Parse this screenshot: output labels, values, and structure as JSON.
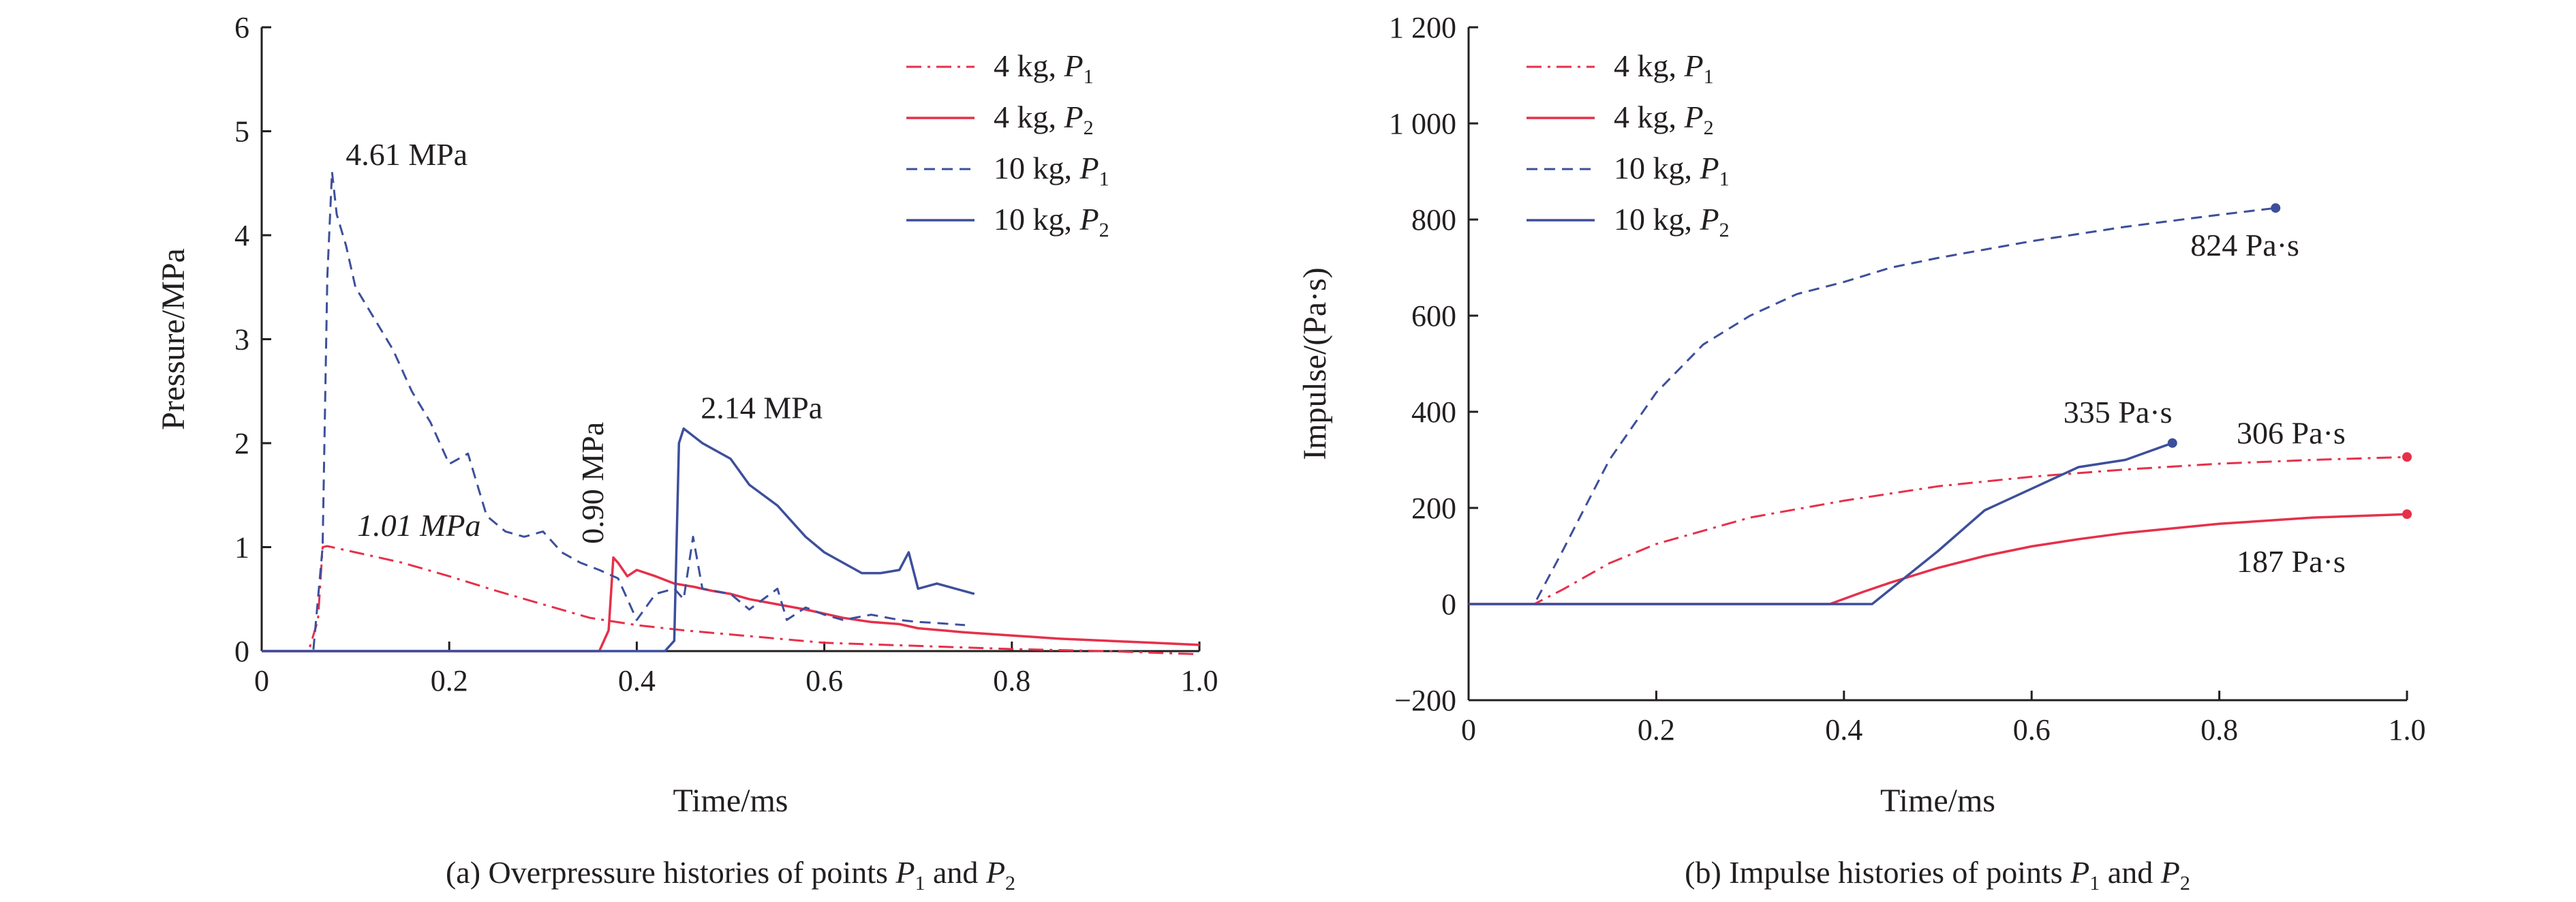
{
  "chart_data": [
    {
      "type": "line",
      "panel": "a",
      "caption": {
        "prefix": "(a) Overpressure histories of points ",
        "p1": "P",
        "p1_sub": "1",
        "mid": " and ",
        "p2": "P",
        "p2_sub": "2"
      },
      "xlabel": "Time/ms",
      "ylabel": "Pressure/MPa",
      "xlim": [
        0,
        1.0
      ],
      "ylim": [
        0,
        6
      ],
      "xticks": [
        0,
        0.2,
        0.4,
        0.6,
        0.8,
        1.0
      ],
      "xtick_labels": [
        "0",
        "0.2",
        "0.4",
        "0.6",
        "0.8",
        "1.0"
      ],
      "yticks": [
        0,
        1,
        2,
        3,
        4,
        5,
        6
      ],
      "ytick_labels": [
        "0",
        "1",
        "2",
        "3",
        "4",
        "5",
        "6"
      ],
      "legend_position": "top-right",
      "series": [
        {
          "key": "a1",
          "mass": "4 kg, ",
          "point": "P",
          "sub": "1",
          "color": "#e6304a",
          "dash": "dashdot",
          "width": 3,
          "points": [
            [
              0,
              0
            ],
            [
              0.05,
              0
            ],
            [
              0.06,
              0.3
            ],
            [
              0.065,
              1.0
            ],
            [
              0.07,
              1.01
            ],
            [
              0.1,
              0.95
            ],
            [
              0.15,
              0.85
            ],
            [
              0.2,
              0.72
            ],
            [
              0.25,
              0.58
            ],
            [
              0.3,
              0.45
            ],
            [
              0.35,
              0.32
            ],
            [
              0.4,
              0.25
            ],
            [
              0.45,
              0.2
            ],
            [
              0.5,
              0.16
            ],
            [
              0.55,
              0.12
            ],
            [
              0.6,
              0.08
            ],
            [
              0.7,
              0.05
            ],
            [
              0.8,
              0.02
            ],
            [
              0.9,
              0.0
            ],
            [
              1.0,
              -0.03
            ]
          ]
        },
        {
          "key": "a2",
          "mass": "4 kg, ",
          "point": "P",
          "sub": "2",
          "color": "#e6304a",
          "dash": "solid",
          "width": 3.5,
          "points": [
            [
              0,
              0
            ],
            [
              0.36,
              0
            ],
            [
              0.37,
              0.2
            ],
            [
              0.375,
              0.9
            ],
            [
              0.38,
              0.85
            ],
            [
              0.39,
              0.72
            ],
            [
              0.4,
              0.78
            ],
            [
              0.42,
              0.72
            ],
            [
              0.44,
              0.65
            ],
            [
              0.46,
              0.62
            ],
            [
              0.48,
              0.58
            ],
            [
              0.5,
              0.55
            ],
            [
              0.52,
              0.5
            ],
            [
              0.55,
              0.45
            ],
            [
              0.58,
              0.4
            ],
            [
              0.6,
              0.36
            ],
            [
              0.62,
              0.32
            ],
            [
              0.65,
              0.28
            ],
            [
              0.68,
              0.26
            ],
            [
              0.7,
              0.22
            ],
            [
              0.75,
              0.18
            ],
            [
              0.8,
              0.15
            ],
            [
              0.85,
              0.12
            ],
            [
              0.9,
              0.1
            ],
            [
              0.95,
              0.08
            ],
            [
              1.0,
              0.06
            ]
          ]
        },
        {
          "key": "a3",
          "mass": "10 kg, ",
          "point": "P",
          "sub": "1",
          "color": "#3d4f9b",
          "dash": "dashed",
          "width": 3,
          "points": [
            [
              0,
              0
            ],
            [
              0.055,
              0
            ],
            [
              0.065,
              1.0
            ],
            [
              0.07,
              3.6
            ],
            [
              0.075,
              4.61
            ],
            [
              0.08,
              4.2
            ],
            [
              0.09,
              3.9
            ],
            [
              0.1,
              3.5
            ],
            [
              0.12,
              3.2
            ],
            [
              0.14,
              2.9
            ],
            [
              0.16,
              2.5
            ],
            [
              0.18,
              2.2
            ],
            [
              0.2,
              1.8
            ],
            [
              0.22,
              1.9
            ],
            [
              0.24,
              1.3
            ],
            [
              0.26,
              1.15
            ],
            [
              0.28,
              1.1
            ],
            [
              0.3,
              1.15
            ],
            [
              0.32,
              0.95
            ],
            [
              0.34,
              0.85
            ],
            [
              0.36,
              0.78
            ],
            [
              0.38,
              0.7
            ],
            [
              0.4,
              0.3
            ],
            [
              0.42,
              0.55
            ],
            [
              0.44,
              0.6
            ],
            [
              0.45,
              0.5
            ],
            [
              0.46,
              1.1
            ],
            [
              0.47,
              0.6
            ],
            [
              0.5,
              0.55
            ],
            [
              0.52,
              0.4
            ],
            [
              0.55,
              0.6
            ],
            [
              0.56,
              0.3
            ],
            [
              0.58,
              0.42
            ],
            [
              0.6,
              0.35
            ],
            [
              0.62,
              0.3
            ],
            [
              0.65,
              0.35
            ],
            [
              0.68,
              0.3
            ],
            [
              0.7,
              0.28
            ],
            [
              0.72,
              0.27
            ],
            [
              0.75,
              0.25
            ]
          ]
        },
        {
          "key": "a4",
          "mass": "10 kg, ",
          "point": "P",
          "sub": "2",
          "color": "#3d4f9b",
          "dash": "solid",
          "width": 3.5,
          "points": [
            [
              0,
              0
            ],
            [
              0.43,
              0
            ],
            [
              0.44,
              0.1
            ],
            [
              0.445,
              2.0
            ],
            [
              0.45,
              2.14
            ],
            [
              0.47,
              2.0
            ],
            [
              0.5,
              1.85
            ],
            [
              0.52,
              1.6
            ],
            [
              0.55,
              1.4
            ],
            [
              0.57,
              1.2
            ],
            [
              0.58,
              1.1
            ],
            [
              0.6,
              0.95
            ],
            [
              0.62,
              0.85
            ],
            [
              0.64,
              0.75
            ],
            [
              0.66,
              0.75
            ],
            [
              0.68,
              0.78
            ],
            [
              0.69,
              0.95
            ],
            [
              0.7,
              0.6
            ],
            [
              0.72,
              0.65
            ],
            [
              0.74,
              0.6
            ],
            [
              0.76,
              0.55
            ]
          ]
        }
      ],
      "annotations": [
        {
          "text": "4.61 MPa",
          "x": 0.075,
          "y": 4.61,
          "color": "#231f20"
        },
        {
          "text": "1.01 MPa",
          "x": 0.08,
          "y": 1.01,
          "color": "#231f20",
          "italic": true
        },
        {
          "text": "0.90 MPa",
          "x": 0.375,
          "y": 0.9,
          "color": "#231f20",
          "rotate": true
        },
        {
          "text": "2.14 MPa",
          "x": 0.45,
          "y": 2.14,
          "color": "#231f20"
        }
      ]
    },
    {
      "type": "line",
      "panel": "b",
      "caption": {
        "prefix": "(b) Impulse histories of points ",
        "p1": "P",
        "p1_sub": "1",
        "mid": " and ",
        "p2": "P",
        "p2_sub": "2"
      },
      "xlabel": "Time/ms",
      "ylabel": "Impulse/(Pa·s)",
      "xlim": [
        0,
        1.0
      ],
      "ylim": [
        -200,
        1200
      ],
      "xticks": [
        0,
        0.2,
        0.4,
        0.6,
        0.8,
        1.0
      ],
      "xtick_labels": [
        "0",
        "0.2",
        "0.4",
        "0.6",
        "0.8",
        "1.0"
      ],
      "yticks": [
        -200,
        0,
        200,
        400,
        600,
        800,
        1000,
        1200
      ],
      "ytick_labels": [
        "−200",
        "0",
        "200",
        "400",
        "600",
        "800",
        "1 000",
        "1 200"
      ],
      "legend_position": "top-left",
      "series": [
        {
          "key": "b1",
          "mass": "4 kg, ",
          "point": "P",
          "sub": "1",
          "color": "#e6304a",
          "dash": "dashdot",
          "width": 3,
          "points": [
            [
              0,
              0
            ],
            [
              0.07,
              0
            ],
            [
              0.1,
              30
            ],
            [
              0.15,
              85
            ],
            [
              0.2,
              125
            ],
            [
              0.3,
              180
            ],
            [
              0.4,
              215
            ],
            [
              0.5,
              245
            ],
            [
              0.6,
              265
            ],
            [
              0.7,
              280
            ],
            [
              0.8,
              292
            ],
            [
              0.9,
              300
            ],
            [
              1.0,
              306
            ]
          ],
          "end_marker": true
        },
        {
          "key": "b2",
          "mass": "4 kg, ",
          "point": "P",
          "sub": "2",
          "color": "#e6304a",
          "dash": "solid",
          "width": 3.5,
          "points": [
            [
              0,
              0
            ],
            [
              0.385,
              0
            ],
            [
              0.42,
              25
            ],
            [
              0.45,
              45
            ],
            [
              0.5,
              75
            ],
            [
              0.55,
              100
            ],
            [
              0.6,
              120
            ],
            [
              0.65,
              135
            ],
            [
              0.7,
              148
            ],
            [
              0.8,
              167
            ],
            [
              0.9,
              180
            ],
            [
              1.0,
              187
            ]
          ],
          "end_marker": true
        },
        {
          "key": "b3",
          "mass": "10 kg, ",
          "point": "P",
          "sub": "1",
          "color": "#3d4f9b",
          "dash": "dashed",
          "width": 3,
          "points": [
            [
              0,
              0
            ],
            [
              0.07,
              0
            ],
            [
              0.1,
              110
            ],
            [
              0.15,
              300
            ],
            [
              0.2,
              440
            ],
            [
              0.25,
              540
            ],
            [
              0.3,
              600
            ],
            [
              0.35,
              645
            ],
            [
              0.4,
              670
            ],
            [
              0.45,
              700
            ],
            [
              0.5,
              720
            ],
            [
              0.6,
              755
            ],
            [
              0.7,
              785
            ],
            [
              0.8,
              810
            ],
            [
              0.86,
              824
            ]
          ],
          "end_marker": true
        },
        {
          "key": "b4",
          "mass": "10 kg, ",
          "point": "P",
          "sub": "2",
          "color": "#3d4f9b",
          "dash": "solid",
          "width": 3.5,
          "points": [
            [
              0,
              0
            ],
            [
              0.43,
              0
            ],
            [
              0.5,
              110
            ],
            [
              0.55,
              195
            ],
            [
              0.6,
              240
            ],
            [
              0.65,
              285
            ],
            [
              0.7,
              300
            ],
            [
              0.75,
              335
            ]
          ],
          "end_marker": true
        }
      ],
      "annotations": [
        {
          "text": "824 Pa·s",
          "x": 0.86,
          "y": 824,
          "color": "#3d4f9b"
        },
        {
          "text": "335 Pa·s",
          "x": 0.75,
          "y": 335,
          "color": "#3d4f9b"
        },
        {
          "text": "306 Pa·s",
          "x": 1.0,
          "y": 306,
          "color": "#e6304a"
        },
        {
          "text": "187 Pa·s",
          "x": 1.0,
          "y": 187,
          "color": "#e6304a"
        }
      ]
    }
  ]
}
